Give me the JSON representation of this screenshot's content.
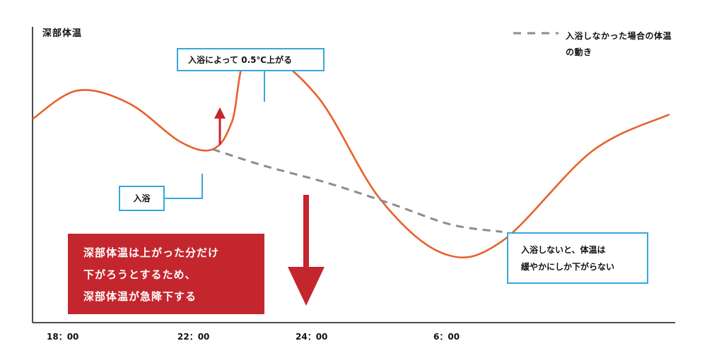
{
  "chart_data": {
    "type": "line",
    "ylabel": "深部体温",
    "x_ticks": [
      "18：00",
      "22：00",
      "24：00",
      "6：00"
    ],
    "series": [
      {
        "name": "",
        "style": "solid",
        "color": "#e8602c",
        "points": [
          [
            0,
            0.55
          ],
          [
            0.7,
            0.86
          ],
          [
            1.5,
            0.72
          ],
          [
            2.3,
            0.3
          ],
          [
            2.8,
            0.22
          ],
          [
            3.1,
            0.52
          ],
          [
            3.4,
            1.3
          ],
          [
            4.4,
            0.82
          ],
          [
            5.4,
            -0.32
          ],
          [
            6.4,
            -0.92
          ],
          [
            7.3,
            -0.78
          ],
          [
            8.7,
            0.2
          ],
          [
            9.9,
            0.6
          ]
        ]
      },
      {
        "name": "入浴しなかった場合の体温の動き",
        "style": "dashed",
        "color": "#8c8c8c",
        "points": [
          [
            2.8,
            0.22
          ],
          [
            3.6,
            0.04
          ],
          [
            4.6,
            -0.15
          ],
          [
            5.6,
            -0.38
          ],
          [
            6.5,
            -0.6
          ],
          [
            7.3,
            -0.68
          ]
        ]
      }
    ],
    "legend": {
      "position": "top-right"
    },
    "grid": false
  },
  "colors": {
    "curve": "#e8602c",
    "dashed": "#8c8c8c",
    "accent_red": "#c4262e",
    "box_border": "#35a7dd"
  },
  "annotations": {
    "rise": "入浴によって 0.5℃上がる",
    "bath": "入浴",
    "slow_line1": "入浴しないと、体温は",
    "slow_line2": "緩やかにしか下がらない",
    "drop_line1": "深部体温は上がった分だけ",
    "drop_line2": "下がろうとするため、",
    "drop_line3": "深部体温が急降下する"
  },
  "arrows": {
    "up": "up-arrow-icon",
    "down": "down-arrow-icon"
  }
}
